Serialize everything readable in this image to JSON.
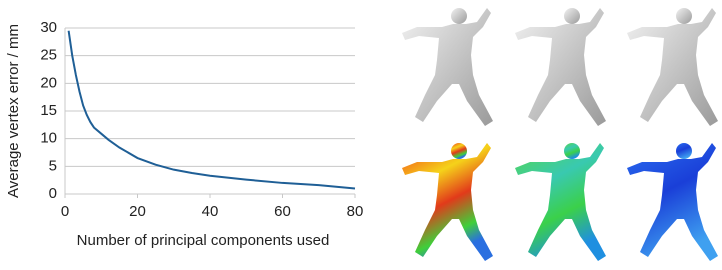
{
  "chart_data": {
    "type": "line",
    "x_label": "Number of principal components used",
    "y_label": "Average vertex error / mm",
    "x": [
      1,
      2,
      3,
      4,
      5,
      6,
      7,
      8,
      10,
      12,
      15,
      20,
      25,
      30,
      35,
      40,
      50,
      60,
      70,
      80
    ],
    "series": [
      {
        "color": "#1f5f96",
        "values": [
          29.5,
          25,
          21.5,
          18.5,
          16,
          14.3,
          13,
          12,
          10.9,
          9.8,
          8.4,
          6.5,
          5.3,
          4.4,
          3.8,
          3.3,
          2.6,
          2.0,
          1.6,
          1.0
        ]
      }
    ],
    "xlim": [
      0,
      80
    ],
    "xticks": [
      0,
      20,
      40,
      60,
      80
    ],
    "ylim": [
      0,
      30
    ],
    "yticks": [
      0,
      5,
      10,
      15,
      20,
      25,
      30
    ],
    "grid": true
  }
}
